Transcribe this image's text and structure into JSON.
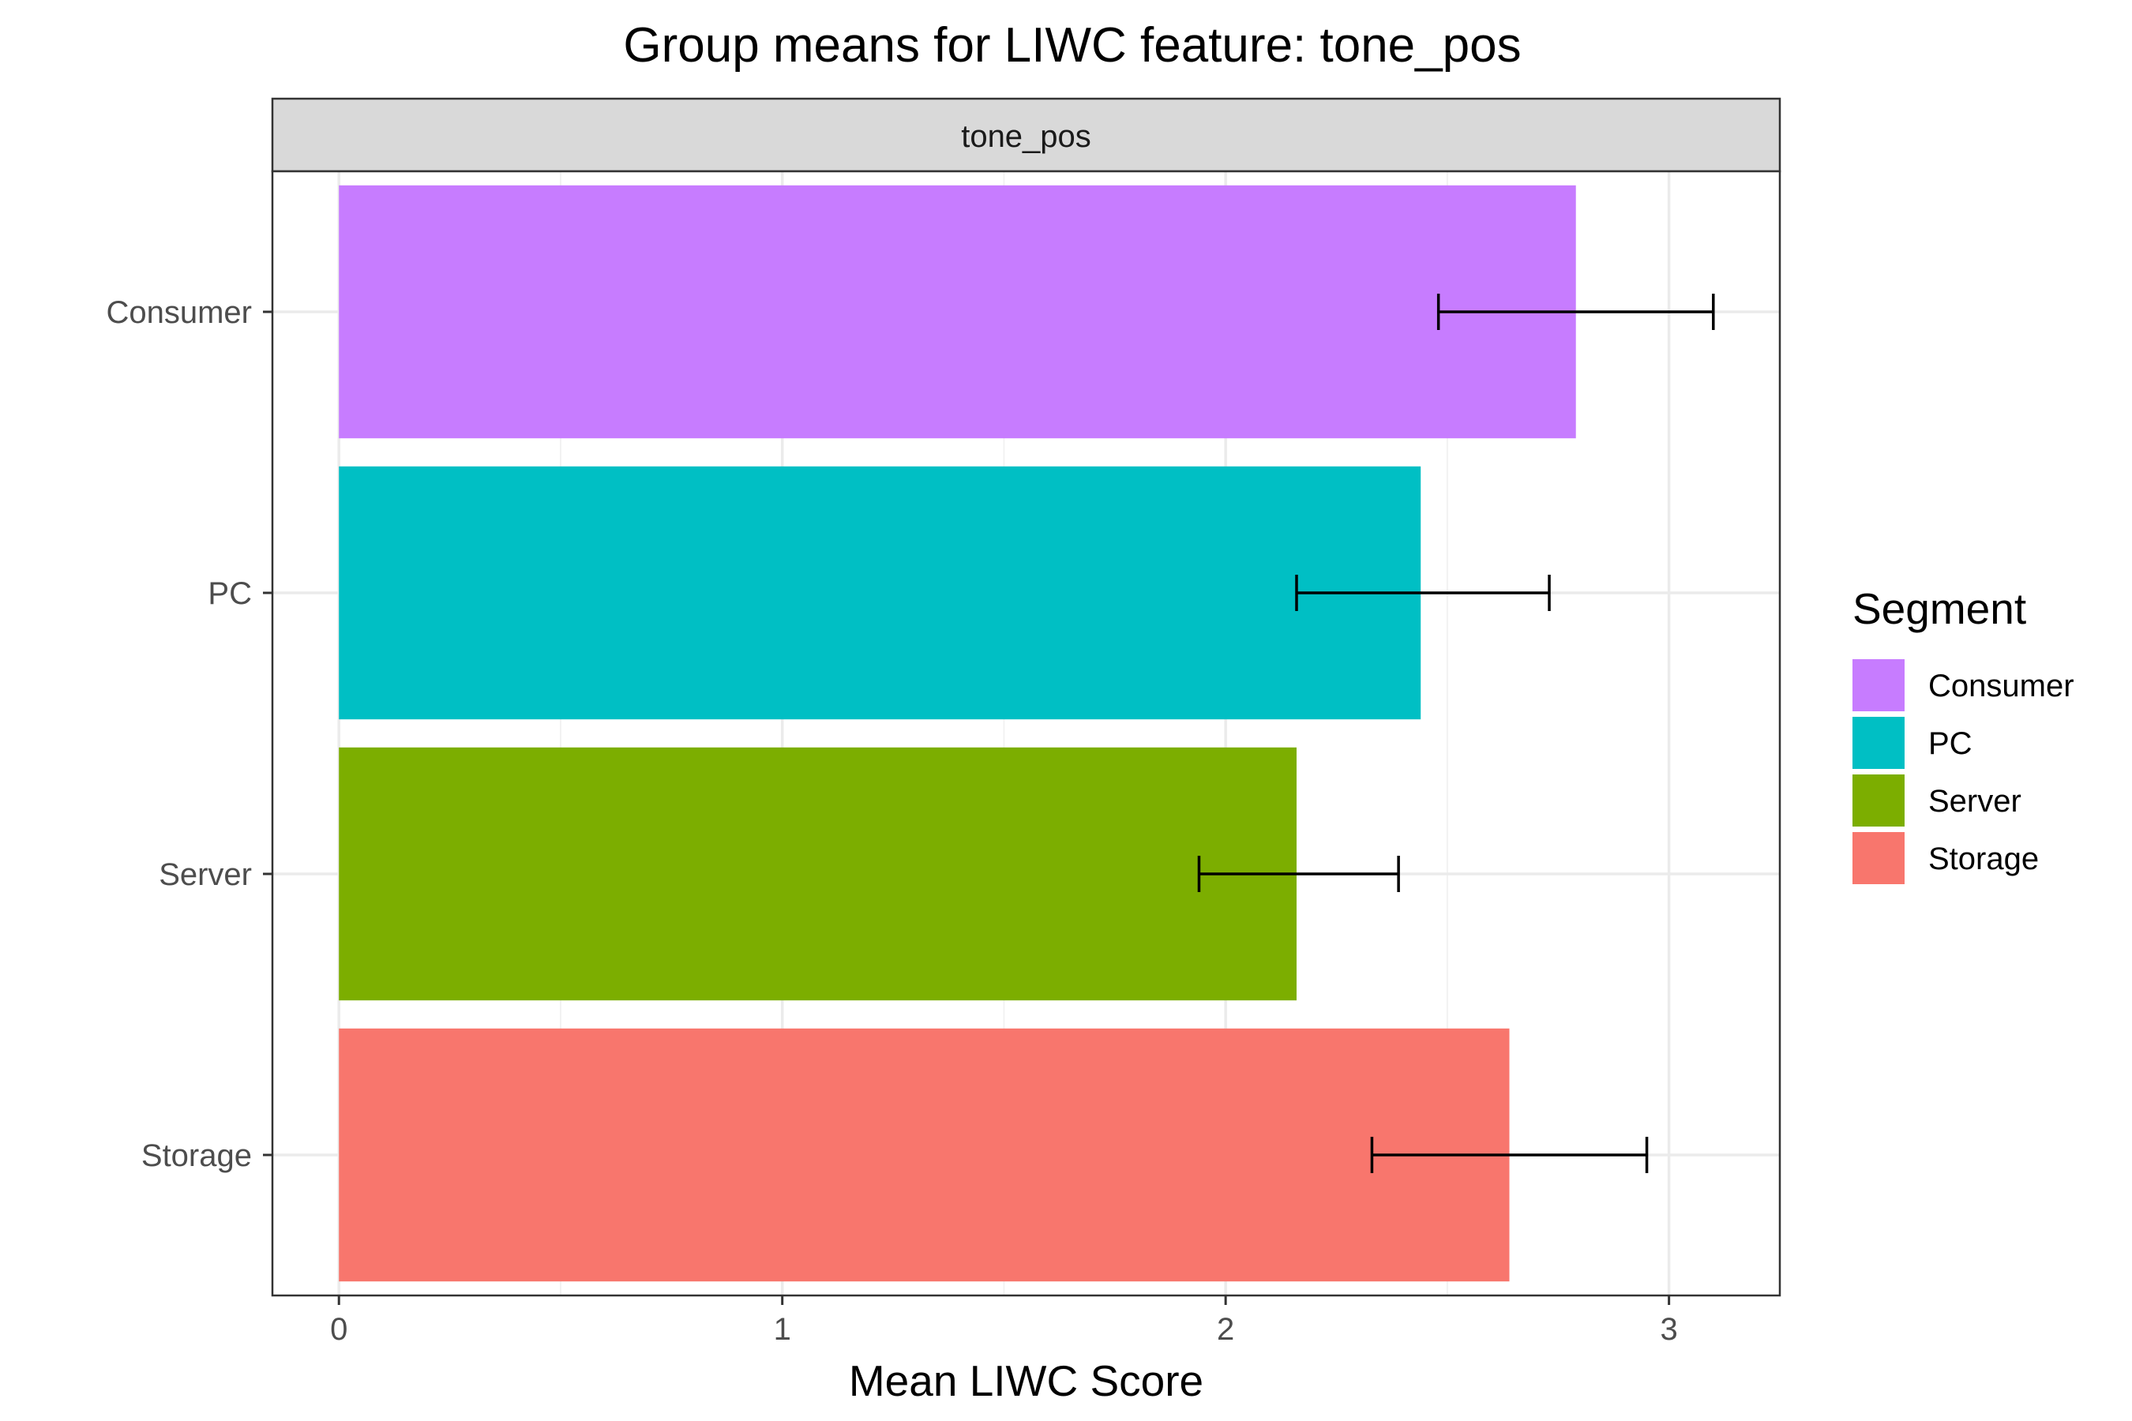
{
  "chart_data": {
    "type": "bar",
    "orientation": "horizontal",
    "title": "Group means for LIWC feature: tone_pos",
    "facet_label": "tone_pos",
    "xlabel": "Mean LIWC Score",
    "ylabel": "",
    "xlim": [
      -0.15,
      3.25
    ],
    "x_ticks": [
      0,
      1,
      2,
      3
    ],
    "grid": true,
    "legend": {
      "title": "Segment",
      "position": "right",
      "entries": [
        "Consumer",
        "PC",
        "Server",
        "Storage"
      ]
    },
    "categories": [
      "Consumer",
      "PC",
      "Server",
      "Storage"
    ],
    "values": [
      2.79,
      2.44,
      2.16,
      2.64
    ],
    "error_low": [
      2.48,
      2.16,
      1.94,
      2.33
    ],
    "error_high": [
      3.1,
      2.73,
      2.39,
      2.95
    ],
    "colors": {
      "Consumer": "#C77CFF",
      "PC": "#00BFC4",
      "Server": "#7CAE00",
      "Storage": "#F8766D"
    }
  }
}
